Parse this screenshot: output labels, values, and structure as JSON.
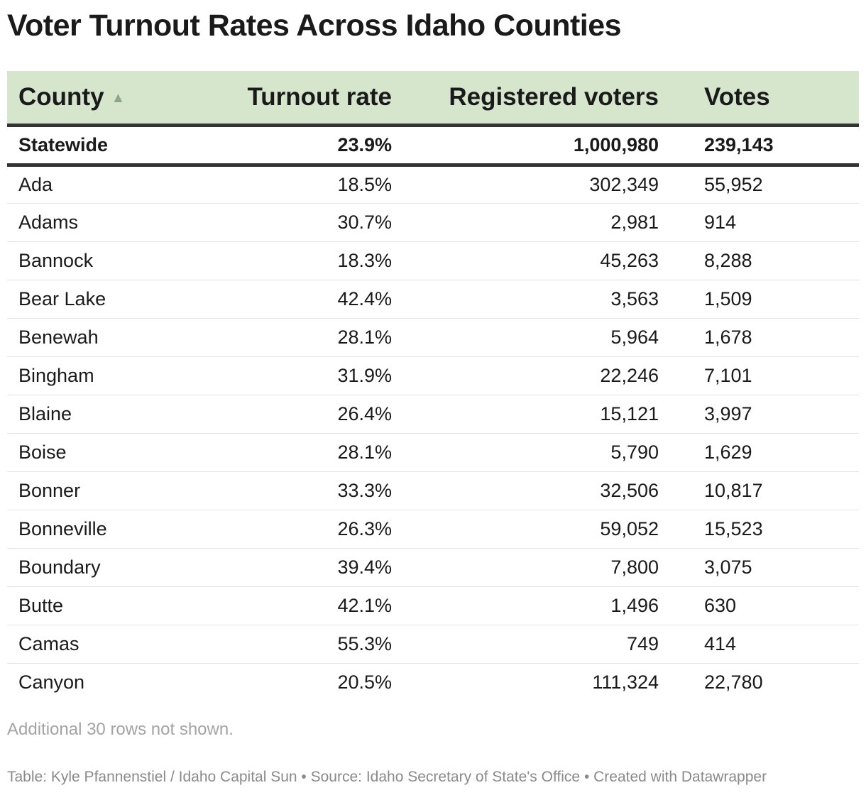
{
  "chart_data": {
    "type": "table",
    "title": "Voter Turnout Rates Across Idaho Counties",
    "columns": [
      "County",
      "Turnout rate",
      "Registered voters",
      "Votes"
    ],
    "sorted_by": "County",
    "sort_direction": "ascending",
    "summary_row": {
      "county": "Statewide",
      "turnout": "23.9%",
      "registered": "1,000,980",
      "votes": "239,143"
    },
    "rows": [
      {
        "county": "Ada",
        "turnout": "18.5%",
        "registered": "302,349",
        "votes": "55,952"
      },
      {
        "county": "Adams",
        "turnout": "30.7%",
        "registered": "2,981",
        "votes": "914"
      },
      {
        "county": "Bannock",
        "turnout": "18.3%",
        "registered": "45,263",
        "votes": "8,288"
      },
      {
        "county": "Bear Lake",
        "turnout": "42.4%",
        "registered": "3,563",
        "votes": "1,509"
      },
      {
        "county": "Benewah",
        "turnout": "28.1%",
        "registered": "5,964",
        "votes": "1,678"
      },
      {
        "county": "Bingham",
        "turnout": "31.9%",
        "registered": "22,246",
        "votes": "7,101"
      },
      {
        "county": "Blaine",
        "turnout": "26.4%",
        "registered": "15,121",
        "votes": "3,997"
      },
      {
        "county": "Boise",
        "turnout": "28.1%",
        "registered": "5,790",
        "votes": "1,629"
      },
      {
        "county": "Bonner",
        "turnout": "33.3%",
        "registered": "32,506",
        "votes": "10,817"
      },
      {
        "county": "Bonneville",
        "turnout": "26.3%",
        "registered": "59,052",
        "votes": "15,523"
      },
      {
        "county": "Boundary",
        "turnout": "39.4%",
        "registered": "7,800",
        "votes": "3,075"
      },
      {
        "county": "Butte",
        "turnout": "42.1%",
        "registered": "1,496",
        "votes": "630"
      },
      {
        "county": "Camas",
        "turnout": "55.3%",
        "registered": "749",
        "votes": "414"
      },
      {
        "county": "Canyon",
        "turnout": "20.5%",
        "registered": "111,324",
        "votes": "22,780"
      }
    ],
    "note": "Additional 30 rows not shown.",
    "footer": "Table: Kyle Pfannenstiel / Idaho Capital Sun • Source: Idaho Secretary of State's Office • Created with Datawrapper"
  },
  "icons": {
    "sort": "sort-ascending-icon"
  },
  "colors": {
    "header_bg": "#d5e6cd",
    "rule": "#333333",
    "sort_icon": "#8fa68a",
    "muted_text": "#a3a3a3"
  }
}
